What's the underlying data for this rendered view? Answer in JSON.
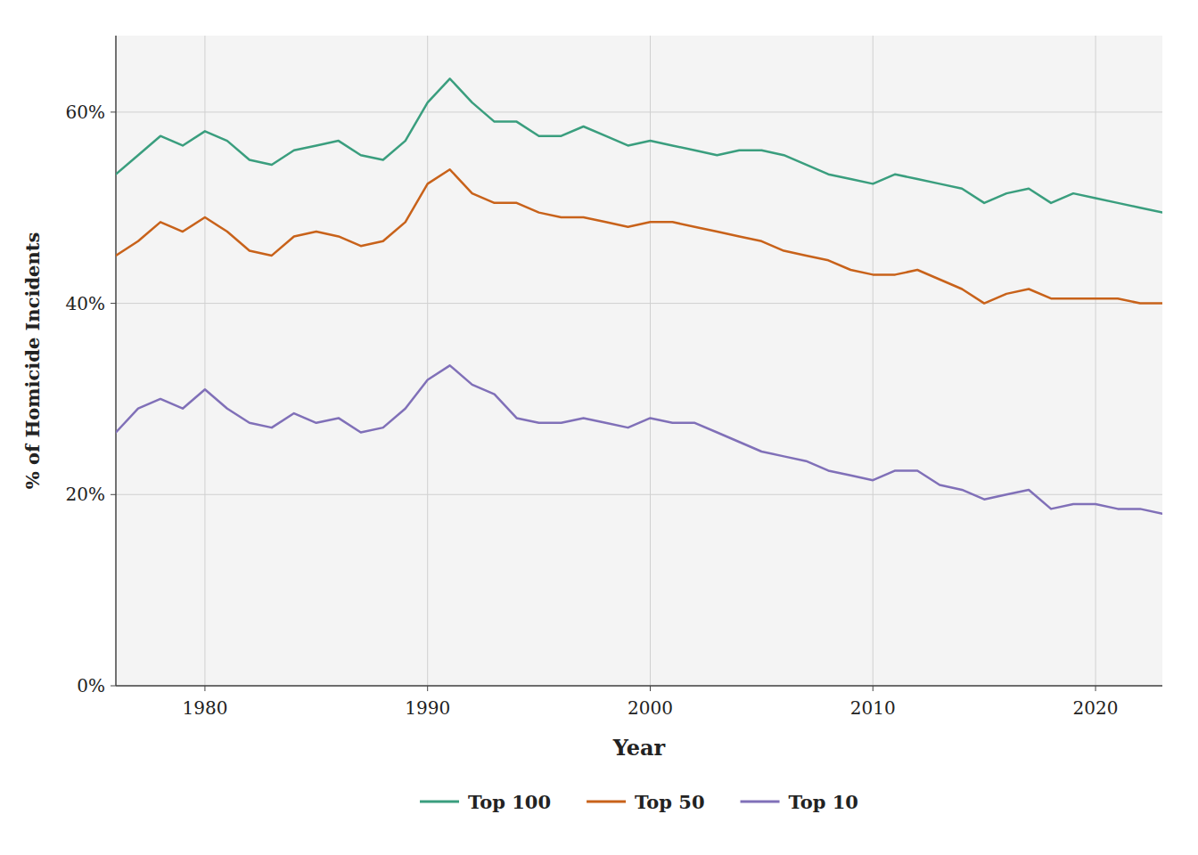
{
  "chart_data": {
    "type": "line",
    "x_label": "Year",
    "y_label": "% of Homicide Incidents",
    "x": [
      1976,
      1977,
      1978,
      1979,
      1980,
      1981,
      1982,
      1983,
      1984,
      1985,
      1986,
      1987,
      1988,
      1989,
      1990,
      1991,
      1992,
      1993,
      1994,
      1995,
      1996,
      1997,
      1998,
      1999,
      2000,
      2001,
      2002,
      2003,
      2004,
      2005,
      2006,
      2007,
      2008,
      2009,
      2010,
      2011,
      2012,
      2013,
      2014,
      2015,
      2016,
      2017,
      2018,
      2019,
      2020,
      2021,
      2022,
      2023
    ],
    "series": [
      {
        "name": "Top 100",
        "color": "#3a9e7e",
        "values": [
          53.5,
          55.5,
          57.5,
          56.5,
          58.0,
          57.0,
          55.0,
          54.5,
          56.0,
          56.5,
          57.0,
          55.5,
          55.0,
          57.0,
          61.0,
          63.5,
          61.0,
          59.0,
          59.0,
          57.5,
          57.5,
          58.5,
          57.5,
          56.5,
          57.0,
          56.5,
          56.0,
          55.5,
          56.0,
          56.0,
          55.5,
          54.5,
          53.5,
          53.0,
          52.5,
          53.5,
          53.0,
          52.5,
          52.0,
          50.5,
          51.5,
          52.0,
          50.5,
          51.5,
          51.0,
          50.5,
          50.0,
          49.5
        ]
      },
      {
        "name": "Top 50",
        "color": "#c8621a",
        "values": [
          45.0,
          46.5,
          48.5,
          47.5,
          49.0,
          47.5,
          45.5,
          45.0,
          47.0,
          47.5,
          47.0,
          46.0,
          46.5,
          48.5,
          52.5,
          54.0,
          51.5,
          50.5,
          50.5,
          49.5,
          49.0,
          49.0,
          48.5,
          48.0,
          48.5,
          48.5,
          48.0,
          47.5,
          47.0,
          46.5,
          45.5,
          45.0,
          44.5,
          43.5,
          43.0,
          43.0,
          43.5,
          42.5,
          41.5,
          40.0,
          41.0,
          41.5,
          40.5,
          40.5,
          40.5,
          40.5,
          40.0,
          40.0
        ]
      },
      {
        "name": "Top 10",
        "color": "#8070b8",
        "values": [
          26.5,
          29.0,
          30.0,
          29.0,
          31.0,
          29.0,
          27.5,
          27.0,
          28.5,
          27.5,
          28.0,
          26.5,
          27.0,
          29.0,
          32.0,
          33.5,
          31.5,
          30.5,
          28.0,
          27.5,
          27.5,
          28.0,
          27.5,
          27.0,
          28.0,
          27.5,
          27.5,
          26.5,
          25.5,
          24.5,
          24.0,
          23.5,
          22.5,
          22.0,
          21.5,
          22.5,
          22.5,
          21.0,
          20.5,
          19.5,
          20.0,
          20.5,
          18.5,
          19.0,
          19.0,
          18.5,
          18.5,
          18.0
        ]
      }
    ],
    "xlim": [
      1976,
      2023
    ],
    "xticks": [
      1980,
      1990,
      2000,
      2010,
      2020
    ],
    "ylim": [
      0,
      68
    ],
    "yticks": [
      {
        "value": 0,
        "label": "0%"
      },
      {
        "value": 20,
        "label": "20%"
      },
      {
        "value": 40,
        "label": "40%"
      },
      {
        "value": 60,
        "label": "60%"
      }
    ],
    "grid": true,
    "legend": "bottom"
  }
}
